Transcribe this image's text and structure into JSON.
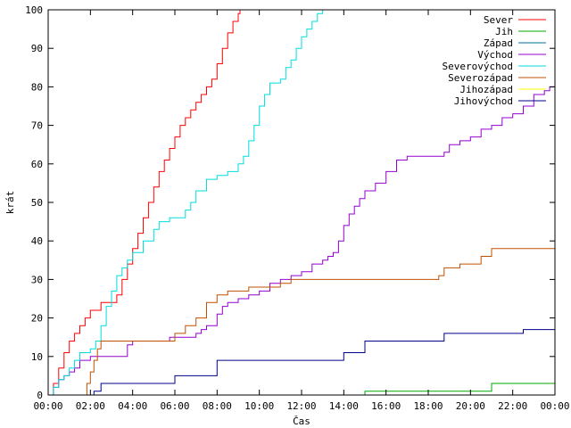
{
  "chart_data": {
    "type": "line",
    "step": true,
    "title": "",
    "xlabel": "Čas",
    "ylabel": "krát",
    "xlim": [
      "00:00",
      "24:00"
    ],
    "ylim": [
      0,
      100
    ],
    "x_ticks": [
      "00:00",
      "02:00",
      "04:00",
      "06:00",
      "08:00",
      "10:00",
      "12:00",
      "14:00",
      "16:00",
      "18:00",
      "20:00",
      "22:00",
      "00:00"
    ],
    "y_ticks": [
      0,
      10,
      20,
      30,
      40,
      50,
      60,
      70,
      80,
      90,
      100
    ],
    "grid": false,
    "legend_position": "top-right",
    "series": [
      {
        "name": "Sever",
        "color": "#ff0000",
        "x": [
          "00:00",
          "00:15",
          "00:30",
          "00:45",
          "01:00",
          "01:15",
          "01:30",
          "01:45",
          "02:00",
          "02:30",
          "03:00",
          "03:15",
          "03:30",
          "03:45",
          "04:00",
          "04:15",
          "04:30",
          "04:45",
          "05:00",
          "05:15",
          "05:30",
          "05:45",
          "06:00",
          "06:15",
          "06:30",
          "06:45",
          "07:00",
          "07:15",
          "07:30",
          "07:45",
          "08:00",
          "08:15",
          "08:30",
          "08:45",
          "09:00",
          "09:05"
        ],
        "y": [
          0,
          3,
          7,
          11,
          14,
          16,
          18,
          20,
          22,
          24,
          24,
          26,
          30,
          34,
          38,
          42,
          46,
          50,
          54,
          58,
          61,
          64,
          67,
          70,
          72,
          74,
          76,
          78,
          80,
          82,
          86,
          90,
          94,
          97,
          99,
          100
        ]
      },
      {
        "name": "Jih",
        "color": "#00aa00",
        "x": [
          "00:00",
          "14:55",
          "15:00",
          "20:50",
          "21:00",
          "24:00"
        ],
        "y": [
          0,
          0,
          1,
          1,
          3,
          3
        ]
      },
      {
        "name": "Západ",
        "color": "#0070a0",
        "x": [
          "00:00",
          "24:00"
        ],
        "y": [
          0,
          0
        ]
      },
      {
        "name": "Východ",
        "color": "#9400d3",
        "x": [
          "00:00",
          "00:15",
          "00:30",
          "00:45",
          "01:00",
          "01:15",
          "01:30",
          "02:00",
          "03:40",
          "03:45",
          "04:00",
          "05:30",
          "05:45",
          "07:00",
          "07:15",
          "07:30",
          "08:00",
          "08:15",
          "08:30",
          "09:00",
          "09:30",
          "10:00",
          "10:30",
          "11:00",
          "11:30",
          "12:00",
          "12:30",
          "13:00",
          "13:15",
          "13:30",
          "13:45",
          "14:00",
          "14:15",
          "14:30",
          "14:45",
          "15:00",
          "15:30",
          "16:00",
          "16:30",
          "17:00",
          "18:00",
          "18:45",
          "19:00",
          "19:30",
          "20:00",
          "20:30",
          "21:00",
          "21:30",
          "22:00",
          "22:30",
          "23:00",
          "23:30",
          "23:45",
          "24:00"
        ],
        "y": [
          0,
          2,
          4,
          5,
          6,
          7,
          9,
          10,
          10,
          13,
          14,
          14,
          15,
          16,
          17,
          18,
          21,
          23,
          24,
          25,
          26,
          27,
          29,
          30,
          31,
          32,
          34,
          35,
          36,
          37,
          40,
          44,
          47,
          49,
          51,
          53,
          55,
          58,
          61,
          62,
          62,
          63,
          65,
          66,
          67,
          69,
          70,
          72,
          73,
          75,
          78,
          79,
          80,
          82
        ]
      },
      {
        "name": "Severovýchod",
        "color": "#00dddd",
        "x": [
          "00:00",
          "00:15",
          "00:30",
          "00:45",
          "01:00",
          "01:15",
          "01:30",
          "02:00",
          "02:15",
          "02:30",
          "02:45",
          "03:00",
          "03:15",
          "03:30",
          "03:45",
          "04:00",
          "04:30",
          "05:00",
          "05:15",
          "05:30",
          "05:45",
          "06:30",
          "06:45",
          "07:00",
          "07:30",
          "08:00",
          "08:30",
          "09:00",
          "09:15",
          "09:30",
          "09:45",
          "10:00",
          "10:15",
          "10:30",
          "10:45",
          "11:00",
          "11:15",
          "11:30",
          "11:45",
          "12:00",
          "12:15",
          "12:30",
          "12:45",
          "13:00",
          "13:05"
        ],
        "y": [
          0,
          2,
          4,
          5,
          7,
          9,
          11,
          12,
          14,
          18,
          23,
          27,
          31,
          33,
          35,
          37,
          40,
          43,
          45,
          45,
          46,
          48,
          50,
          53,
          56,
          57,
          58,
          60,
          62,
          66,
          70,
          75,
          78,
          81,
          81,
          82,
          85,
          87,
          90,
          93,
          95,
          97,
          99,
          100,
          100
        ]
      },
      {
        "name": "Severozápad",
        "color": "#c05000",
        "x": [
          "00:00",
          "01:40",
          "01:50",
          "02:00",
          "02:10",
          "02:20",
          "02:30",
          "05:30",
          "06:00",
          "06:30",
          "07:00",
          "07:30",
          "08:00",
          "08:30",
          "09:00",
          "09:30",
          "10:00",
          "11:00",
          "11:30",
          "12:00",
          "14:00",
          "15:00",
          "16:00",
          "17:00",
          "18:00",
          "18:30",
          "18:45",
          "19:30",
          "20:30",
          "21:00",
          "24:00"
        ],
        "y": [
          0,
          0,
          3,
          6,
          9,
          12,
          14,
          14,
          16,
          18,
          20,
          24,
          26,
          27,
          27,
          28,
          28,
          29,
          30,
          30,
          30,
          30,
          30,
          30,
          30,
          31,
          33,
          34,
          36,
          38,
          38
        ]
      },
      {
        "name": "Jihozápad",
        "color": "#ffff00",
        "x": [
          "00:00",
          "24:00"
        ],
        "y": [
          0,
          0
        ]
      },
      {
        "name": "Jihovýchod",
        "color": "#00008b",
        "x": [
          "00:00",
          "02:00",
          "02:10",
          "02:30",
          "05:50",
          "06:00",
          "07:40",
          "08:00",
          "13:50",
          "14:00",
          "15:00",
          "18:30",
          "18:45",
          "22:20",
          "22:30",
          "24:00"
        ],
        "y": [
          0,
          0,
          1,
          3,
          3,
          5,
          5,
          9,
          9,
          11,
          14,
          14,
          16,
          16,
          17,
          17
        ]
      }
    ]
  }
}
